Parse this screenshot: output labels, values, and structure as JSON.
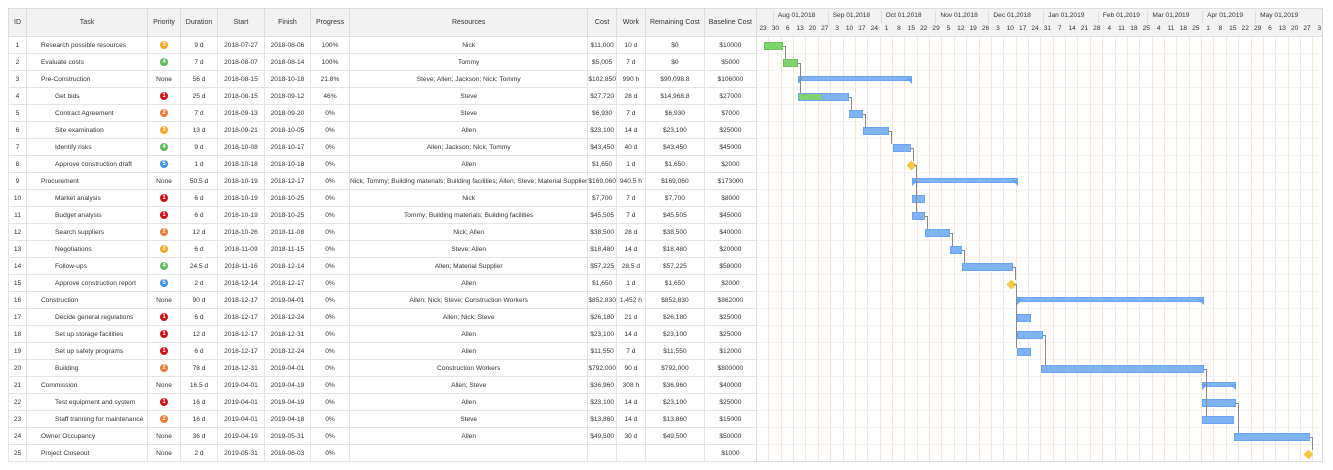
{
  "columns": [
    "ID",
    "Task",
    "Priority",
    "Duration",
    "Start",
    "Finish",
    "Progress",
    "Resources",
    "Cost",
    "Work",
    "Remaining Cost",
    "Baseline Cost"
  ],
  "priority_colors": {
    "1": "#c9101a",
    "2": "#ec7a2e",
    "3": "#f5a623",
    "4": "#5cb85c",
    "5": "#3a8ee6"
  },
  "none_label": "None",
  "timeline": {
    "start": "2018-07-23",
    "end": "2019-06-09",
    "months": [
      "Aug 01,2018",
      "Sep 01,2018",
      "Oct 01,2018",
      "Nov 01,2018",
      "Dec 01,2018",
      "Jan 01,2019",
      "Feb 01,2019",
      "Mar 01,2019",
      "Apr 01,2019",
      "May 01,2019"
    ],
    "month_dates": [
      "2018-08-01",
      "2018-09-01",
      "2018-10-01",
      "2018-11-01",
      "2018-12-01",
      "2019-01-01",
      "2019-02-01",
      "2019-03-01",
      "2019-04-01",
      "2019-05-01"
    ],
    "weeks": [
      "23",
      "30",
      "6",
      "13",
      "20",
      "27",
      "3",
      "10",
      "17",
      "24",
      "1",
      "8",
      "15",
      "22",
      "29",
      "5",
      "12",
      "19",
      "26",
      "3",
      "10",
      "17",
      "24",
      "31",
      "7",
      "14",
      "21",
      "28",
      "4",
      "11",
      "18",
      "25",
      "4",
      "11",
      "18",
      "25",
      "1",
      "8",
      "15",
      "22",
      "29",
      "6",
      "13",
      "20",
      "27",
      "3"
    ]
  },
  "tasks": [
    {
      "id": "1",
      "name": "Research possible resources",
      "level": 0,
      "priority": "3",
      "duration": "9 d",
      "start": "2018-07-27",
      "finish": "2018-08-06",
      "progress": "100%",
      "resources": "Nick",
      "cost": "$11,000",
      "work": "10 d",
      "remaining": "$0",
      "baseline": "$10000",
      "type": "task",
      "pct": 100
    },
    {
      "id": "2",
      "name": "Evaluate costs",
      "level": 0,
      "priority": "4",
      "duration": "7 d",
      "start": "2018-08-07",
      "finish": "2018-08-14",
      "progress": "100%",
      "resources": "Tommy",
      "cost": "$5,005",
      "work": "7 d",
      "remaining": "$0",
      "baseline": "$5000",
      "type": "task",
      "pct": 100,
      "pred": "1"
    },
    {
      "id": "3",
      "name": "Pre-Construction",
      "level": 0,
      "priority": "None",
      "duration": "56 d",
      "start": "2018-08-15",
      "finish": "2018-10-18",
      "progress": "21.8%",
      "resources": "Steve; Allen; Jackson; Nick; Tommy",
      "cost": "$102,850",
      "work": "990 h",
      "remaining": "$90,098.8",
      "baseline": "$106000",
      "type": "summary",
      "pct": 21.8
    },
    {
      "id": "4",
      "name": "Get bids",
      "level": 1,
      "priority": "1",
      "duration": "25 d",
      "start": "2018-08-15",
      "finish": "2018-09-12",
      "progress": "46%",
      "resources": "Steve",
      "cost": "$27,720",
      "work": "28 d",
      "remaining": "$14,968.8",
      "baseline": "$27000",
      "type": "task",
      "pct": 46,
      "pred": "2"
    },
    {
      "id": "5",
      "name": "Contract Agreement",
      "level": 1,
      "priority": "2",
      "duration": "7 d",
      "start": "2018-09-13",
      "finish": "2018-09-20",
      "progress": "0%",
      "resources": "Steve",
      "cost": "$6,930",
      "work": "7 d",
      "remaining": "$6,930",
      "baseline": "$7000",
      "type": "task",
      "pct": 0,
      "pred": "4"
    },
    {
      "id": "6",
      "name": "Site examination",
      "level": 1,
      "priority": "3",
      "duration": "13 d",
      "start": "2018-09-21",
      "finish": "2018-10-05",
      "progress": "0%",
      "resources": "Allen",
      "cost": "$23,100",
      "work": "14 d",
      "remaining": "$23,100",
      "baseline": "$25000",
      "type": "task",
      "pct": 0,
      "pred": "5"
    },
    {
      "id": "7",
      "name": "Identify risks",
      "level": 1,
      "priority": "4",
      "duration": "9 d",
      "start": "2018-10-08",
      "finish": "2018-10-17",
      "progress": "0%",
      "resources": "Allen; Jackson; Nick; Tommy",
      "cost": "$43,450",
      "work": "40 d",
      "remaining": "$43,450",
      "baseline": "$45000",
      "type": "task",
      "pct": 0,
      "pred": "6"
    },
    {
      "id": "8",
      "name": "Approve construction draft",
      "level": 1,
      "priority": "5",
      "duration": "1 d",
      "start": "2018-10-18",
      "finish": "2018-10-18",
      "progress": "0%",
      "resources": "Allen",
      "cost": "$1,650",
      "work": "1 d",
      "remaining": "$1,650",
      "baseline": "$2000",
      "type": "milestone",
      "pct": 0,
      "pred": "7"
    },
    {
      "id": "9",
      "name": "Procurement",
      "level": 0,
      "priority": "None",
      "duration": "50.5 d",
      "start": "2018-10-19",
      "finish": "2018-12-17",
      "progress": "0%",
      "resources": "Nick; Tommy; Building materials; Building facilities; Allen; Steve; Material Supplier",
      "cost": "$169,060",
      "work": "940.5 h",
      "remaining": "$169,060",
      "baseline": "$173000",
      "type": "summary",
      "pct": 0
    },
    {
      "id": "10",
      "name": "Market analysis",
      "level": 1,
      "priority": "1",
      "duration": "6 d",
      "start": "2018-10-19",
      "finish": "2018-10-25",
      "progress": "0%",
      "resources": "Nick",
      "cost": "$7,700",
      "work": "7 d",
      "remaining": "$7,700",
      "baseline": "$8000",
      "type": "task",
      "pct": 0,
      "pred": "8"
    },
    {
      "id": "11",
      "name": "Budget analysis",
      "level": 1,
      "priority": "1",
      "duration": "6 d",
      "start": "2018-10-19",
      "finish": "2018-10-25",
      "progress": "0%",
      "resources": "Tommy; Building materials; Building facilities",
      "cost": "$45,505",
      "work": "7 d",
      "remaining": "$45,505",
      "baseline": "$45000",
      "type": "task",
      "pct": 0,
      "pred": "8"
    },
    {
      "id": "12",
      "name": "Search suppliers",
      "level": 1,
      "priority": "2",
      "duration": "12 d",
      "start": "2018-10-26",
      "finish": "2018-11-08",
      "progress": "0%",
      "resources": "Nick; Allen",
      "cost": "$38,500",
      "work": "28 d",
      "remaining": "$38,500",
      "baseline": "$40000",
      "type": "task",
      "pct": 0,
      "pred": "11"
    },
    {
      "id": "13",
      "name": "Negotiations",
      "level": 1,
      "priority": "3",
      "duration": "6 d",
      "start": "2018-11-09",
      "finish": "2018-11-15",
      "progress": "0%",
      "resources": "Steve; Allen",
      "cost": "$18,480",
      "work": "14 d",
      "remaining": "$18,480",
      "baseline": "$20000",
      "type": "task",
      "pct": 0,
      "pred": "12"
    },
    {
      "id": "14",
      "name": "Follow-ups",
      "level": 1,
      "priority": "4",
      "duration": "24.5 d",
      "start": "2018-11-16",
      "finish": "2018-12-14",
      "progress": "0%",
      "resources": "Allen; Material Supplier",
      "cost": "$57,225",
      "work": "28.5 d",
      "remaining": "$57,225",
      "baseline": "$58000",
      "type": "task",
      "pct": 0,
      "pred": "13"
    },
    {
      "id": "15",
      "name": "Approve construction report",
      "level": 1,
      "priority": "5",
      "duration": "2 d",
      "start": "2018-12-14",
      "finish": "2018-12-17",
      "progress": "0%",
      "resources": "Allen",
      "cost": "$1,650",
      "work": "1 d",
      "remaining": "$1,650",
      "baseline": "$2000",
      "type": "milestone",
      "pct": 0,
      "pred": "14"
    },
    {
      "id": "16",
      "name": "Construction",
      "level": 0,
      "priority": "None",
      "duration": "90 d",
      "start": "2018-12-17",
      "finish": "2019-04-01",
      "progress": "0%",
      "resources": "Allen; Nick; Steve; Construction Workers",
      "cost": "$852,830",
      "work": "1,452 h",
      "remaining": "$852,830",
      "baseline": "$862000",
      "type": "summary",
      "pct": 0
    },
    {
      "id": "17",
      "name": "Decide general regulations",
      "level": 1,
      "priority": "1",
      "duration": "6 d",
      "start": "2018-12-17",
      "finish": "2018-12-24",
      "progress": "0%",
      "resources": "Allen; Nick; Steve",
      "cost": "$26,180",
      "work": "21 d",
      "remaining": "$26,180",
      "baseline": "$25000",
      "type": "task",
      "pct": 0,
      "pred": "15"
    },
    {
      "id": "18",
      "name": "Set up storage facilities",
      "level": 1,
      "priority": "1",
      "duration": "12 d",
      "start": "2018-12-17",
      "finish": "2018-12-31",
      "progress": "0%",
      "resources": "Allen",
      "cost": "$23,100",
      "work": "14 d",
      "remaining": "$23,100",
      "baseline": "$25000",
      "type": "task",
      "pct": 0,
      "pred": "15"
    },
    {
      "id": "19",
      "name": "Set up safety programs",
      "level": 1,
      "priority": "1",
      "duration": "6 d",
      "start": "2018-12-17",
      "finish": "2018-12-24",
      "progress": "0%",
      "resources": "Allen",
      "cost": "$11,550",
      "work": "7 d",
      "remaining": "$11,550",
      "baseline": "$12000",
      "type": "task",
      "pct": 0,
      "pred": "15"
    },
    {
      "id": "20",
      "name": "Building",
      "level": 1,
      "priority": "2",
      "duration": "78 d",
      "start": "2018-12-31",
      "finish": "2019-04-01",
      "progress": "0%",
      "resources": "Construction Workers",
      "cost": "$792,000",
      "work": "90 d",
      "remaining": "$792,000",
      "baseline": "$800000",
      "type": "task",
      "pct": 0,
      "pred": "18"
    },
    {
      "id": "21",
      "name": "Commission",
      "level": 0,
      "priority": "None",
      "duration": "16.5 d",
      "start": "2019-04-01",
      "finish": "2019-04-19",
      "progress": "0%",
      "resources": "Allen; Steve",
      "cost": "$36,960",
      "work": "308 h",
      "remaining": "$36,960",
      "baseline": "$40000",
      "type": "summary",
      "pct": 0
    },
    {
      "id": "22",
      "name": "Test equipment and system",
      "level": 1,
      "priority": "1",
      "duration": "16 d",
      "start": "2019-04-01",
      "finish": "2019-04-19",
      "progress": "0%",
      "resources": "Allen",
      "cost": "$23,100",
      "work": "14 d",
      "remaining": "$23,100",
      "baseline": "$25000",
      "type": "task",
      "pct": 0,
      "pred": "20"
    },
    {
      "id": "23",
      "name": "Staff tranning for maintenance",
      "level": 1,
      "priority": "2",
      "duration": "16 d",
      "start": "2019-04-01",
      "finish": "2019-04-18",
      "progress": "0%",
      "resources": "Steve",
      "cost": "$13,860",
      "work": "14 d",
      "remaining": "$13,860",
      "baseline": "$15000",
      "type": "task",
      "pct": 0,
      "pred": "20"
    },
    {
      "id": "24",
      "name": "Owner Occupancy",
      "level": 0,
      "priority": "None",
      "duration": "36 d",
      "start": "2019-04-19",
      "finish": "2019-05-31",
      "progress": "0%",
      "resources": "Allen",
      "cost": "$49,500",
      "work": "30 d",
      "remaining": "$49,500",
      "baseline": "$50000",
      "type": "task",
      "pct": 0,
      "pred": "22"
    },
    {
      "id": "25",
      "name": "Project Closeout",
      "level": 0,
      "priority": "None",
      "duration": "2 d",
      "start": "2019-05-31",
      "finish": "2019-06-03",
      "progress": "0%",
      "resources": "",
      "cost": "",
      "work": "",
      "remaining": "",
      "baseline": "$1000",
      "type": "milestone",
      "pct": 0,
      "pred": "24"
    }
  ]
}
